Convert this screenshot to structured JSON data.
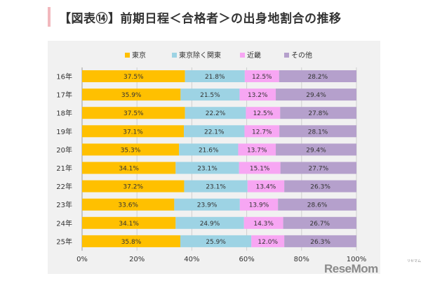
{
  "page": {
    "title": "【図表⑭】前期日程＜合格者＞の出身地割合の推移",
    "brand": "ReseMom",
    "brand_kana": "リセマム"
  },
  "chart_data": {
    "type": "bar",
    "orientation": "horizontal",
    "stacked": "percent",
    "categories": [
      "16年",
      "17年",
      "18年",
      "19年",
      "20年",
      "21年",
      "22年",
      "23年",
      "24年",
      "25年"
    ],
    "series": [
      {
        "name": "東京",
        "color": "#ffc000",
        "values": [
          37.5,
          35.9,
          37.5,
          37.1,
          35.3,
          34.1,
          37.2,
          33.6,
          34.1,
          35.8
        ],
        "labels": [
          "37.5%",
          "35.9%",
          "37.5%",
          "37.1%",
          "35.3%",
          "34.1%",
          "37.2%",
          "33.6%",
          "34.1%",
          "35.8%"
        ]
      },
      {
        "name": "東京除く関東",
        "color": "#9dd3e4",
        "values": [
          21.8,
          21.5,
          22.2,
          22.1,
          21.6,
          23.1,
          23.1,
          23.9,
          24.9,
          25.9
        ],
        "labels": [
          "21.8%",
          "21.5%",
          "22.2%",
          "22.1%",
          "21.6%",
          "23.1%",
          "23.1%",
          "23.9%",
          "24.9%",
          "25.9%"
        ]
      },
      {
        "name": "近畿",
        "color": "#f7a6f3",
        "values": [
          12.5,
          13.2,
          12.5,
          12.7,
          13.7,
          15.1,
          13.4,
          13.9,
          14.3,
          12.0
        ],
        "labels": [
          "12.5%",
          "13.2%",
          "12.5%",
          "12.7%",
          "13.7%",
          "15.1%",
          "13.4%",
          "13.9%",
          "14.3%",
          "12.0%"
        ]
      },
      {
        "name": "その他",
        "color": "#b5a0cc",
        "values": [
          28.2,
          29.4,
          27.8,
          28.1,
          29.4,
          27.7,
          26.3,
          28.6,
          26.7,
          26.3
        ],
        "labels": [
          "28.2%",
          "29.4%",
          "27.8%",
          "28.1%",
          "29.4%",
          "27.7%",
          "26.3%",
          "28.6%",
          "26.7%",
          "26.3%"
        ]
      }
    ],
    "xlim": [
      0,
      100
    ],
    "xticks": [
      "0%",
      "20%",
      "40%",
      "60%",
      "80%",
      "100%"
    ],
    "legend_position": "top",
    "grid": "vertical"
  }
}
